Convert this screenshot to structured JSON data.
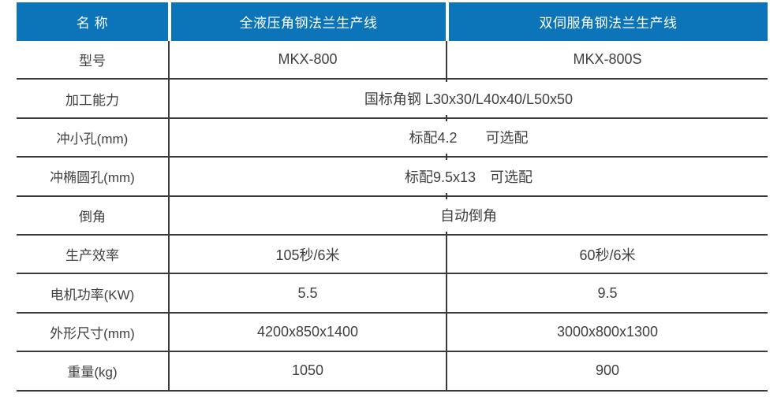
{
  "colors": {
    "header_bg": "#0C74B9",
    "header_text": "#FFFFFF",
    "body_text": "#3F3F3F",
    "grid_line": "#3A3A3A"
  },
  "table": {
    "header": [
      "名 称",
      "全液压角钢法兰生产线",
      "双伺服角钢法兰生产线"
    ],
    "rows": [
      {
        "label": "型号",
        "cells": [
          "MKX-800",
          "MKX-800S"
        ]
      },
      {
        "label": "加工能力",
        "value": "国标角钢 L30x30/L40x40/L50x50"
      },
      {
        "label": "冲小孔(mm)",
        "value": "标配4.2　　可选配"
      },
      {
        "label": "冲椭圆孔(mm)",
        "value": "标配9.5x13　可选配"
      },
      {
        "label": "倒角",
        "value": "自动倒角"
      },
      {
        "label": "生产效率",
        "cells": [
          "105秒/6米",
          "60秒/6米"
        ]
      },
      {
        "label": "电机功率(KW)",
        "cells": [
          "5.5",
          "9.5"
        ]
      },
      {
        "label": "外形尺寸(mm)",
        "cells": [
          "4200x850x1400",
          "3000x800x1300"
        ]
      },
      {
        "label": "重量(kg)",
        "cells": [
          "1050",
          "900"
        ]
      }
    ]
  }
}
